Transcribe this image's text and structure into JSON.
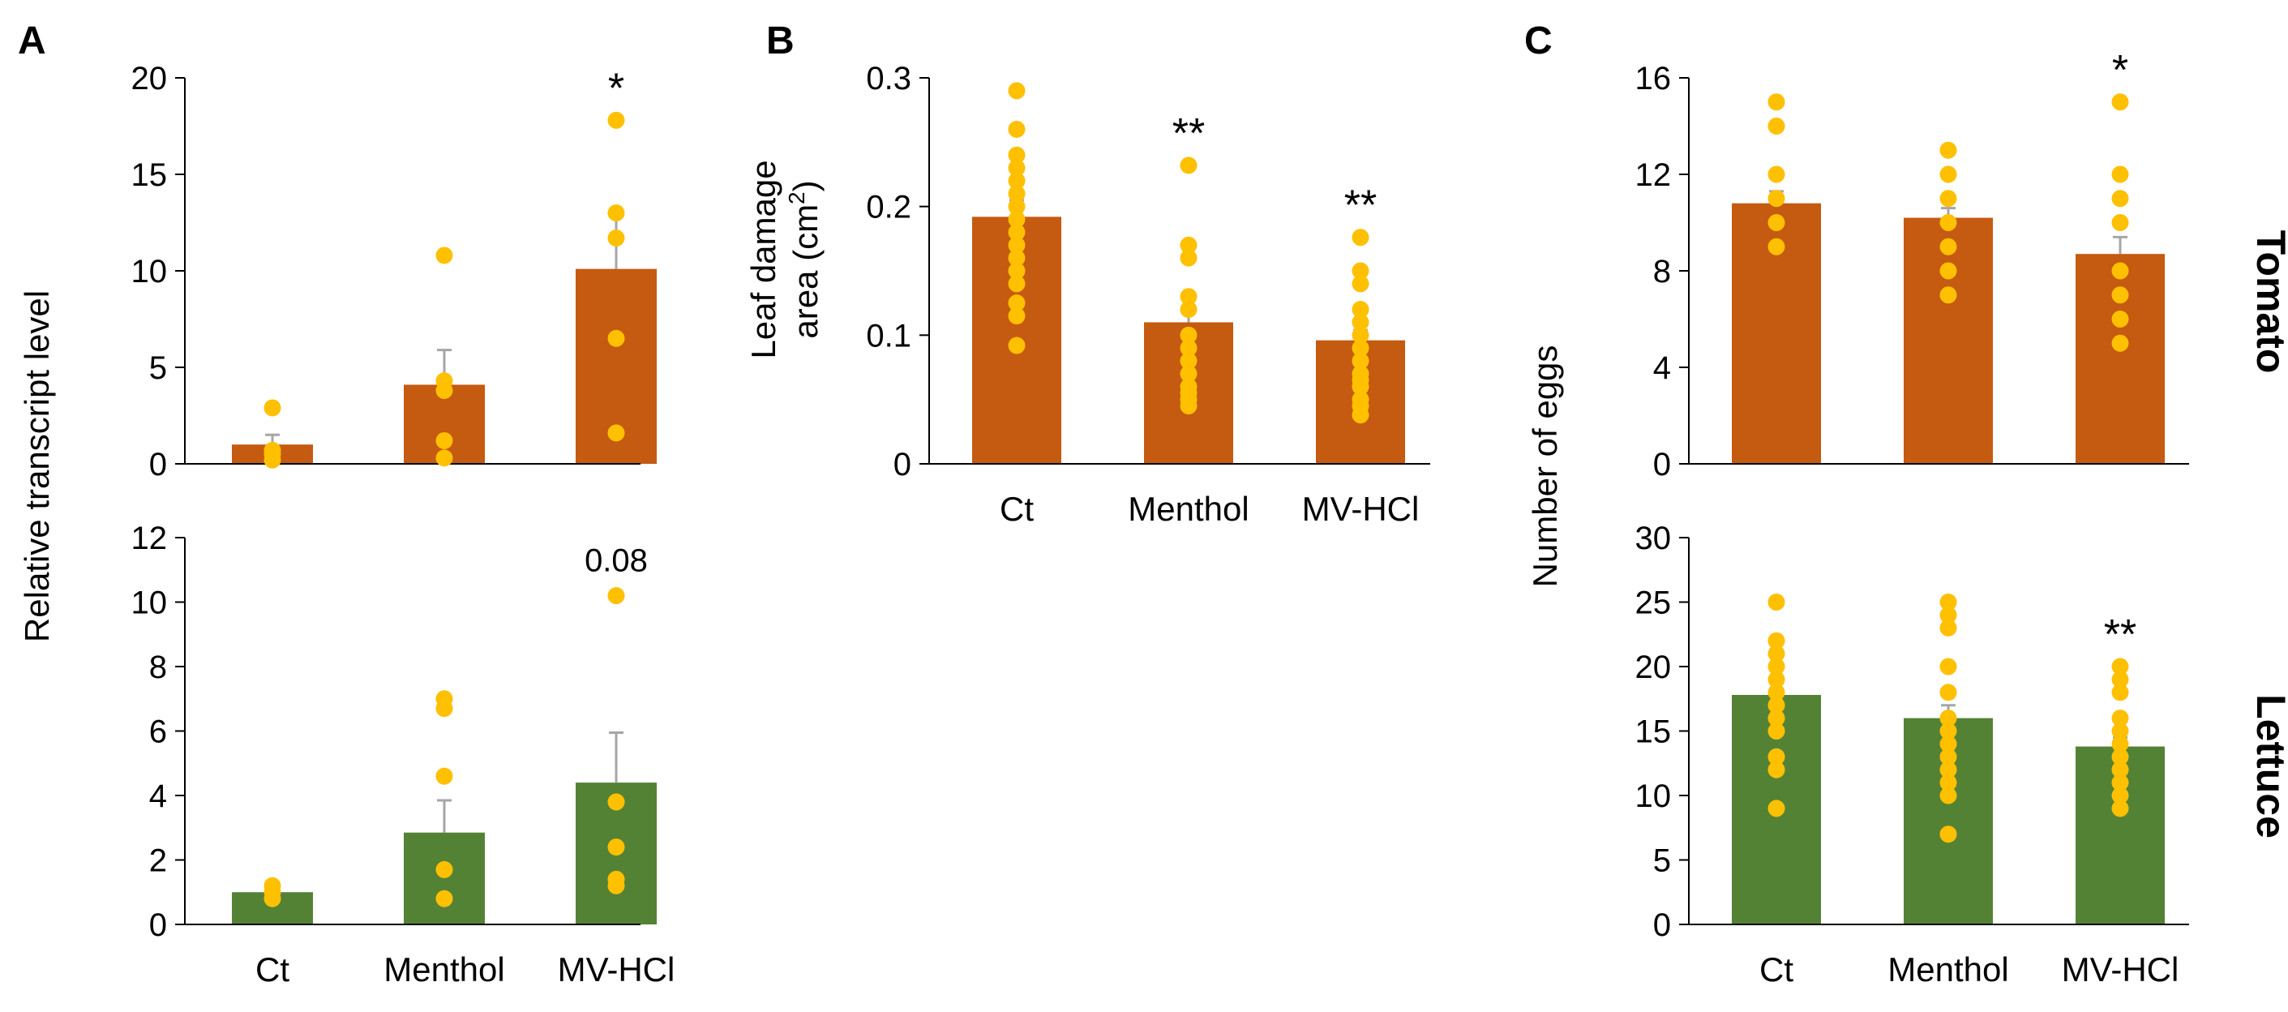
{
  "figure": {
    "panels": [
      "A",
      "B",
      "C"
    ],
    "row_labels": {
      "tomato": "Tomato",
      "lettuce": "Lettuce"
    },
    "colors": {
      "tomato": "#C55A11",
      "lettuce": "#548235",
      "points": "#FFC000",
      "error": "#A6A6A6",
      "axis": "#000000"
    }
  },
  "chart_data": [
    {
      "id": "A_top",
      "panel": "A",
      "type": "bar",
      "plant": "tomato",
      "categories": [
        "Ct",
        "Menthol",
        "MV-HCl"
      ],
      "values": [
        1.0,
        4.1,
        10.1
      ],
      "errors": [
        0.5,
        1.8,
        2.8
      ],
      "points": [
        [
          0.2,
          0.5,
          0.7,
          2.9
        ],
        [
          0.3,
          1.2,
          3.8,
          4.3,
          10.8
        ],
        [
          1.6,
          6.5,
          11.7,
          13.0,
          17.8
        ]
      ],
      "significance": [
        "",
        "",
        "*"
      ],
      "ylim": [
        0,
        20
      ],
      "yticks": [
        0,
        5,
        10,
        15,
        20
      ],
      "ylabel": "Relative transcript level",
      "xlabel": "",
      "show_category_labels": false
    },
    {
      "id": "A_bottom",
      "panel": "A",
      "type": "bar",
      "plant": "lettuce",
      "categories": [
        "Ct",
        "Menthol",
        "MV-HCl"
      ],
      "values": [
        1.0,
        2.85,
        4.4
      ],
      "errors": [
        0.15,
        1.0,
        1.55
      ],
      "points": [
        [
          0.8,
          1.0,
          1.2
        ],
        [
          0.8,
          1.7,
          4.6,
          6.7,
          7.0
        ],
        [
          1.2,
          1.4,
          2.4,
          3.8,
          10.2
        ]
      ],
      "significance": [
        "",
        "",
        "0.08"
      ],
      "ylim": [
        0,
        12
      ],
      "yticks": [
        0,
        2,
        4,
        6,
        8,
        10,
        12
      ],
      "xlabel": "",
      "show_category_labels": true
    },
    {
      "id": "B",
      "panel": "B",
      "type": "bar",
      "plant": "tomato",
      "categories": [
        "Ct",
        "Menthol",
        "MV-HCl"
      ],
      "values": [
        0.192,
        0.11,
        0.096
      ],
      "errors": [
        0.013,
        0.01,
        0.008
      ],
      "points": [
        [
          0.092,
          0.115,
          0.125,
          0.14,
          0.15,
          0.16,
          0.17,
          0.18,
          0.19,
          0.2,
          0.21,
          0.22,
          0.23,
          0.24,
          0.26,
          0.29
        ],
        [
          0.045,
          0.05,
          0.055,
          0.06,
          0.07,
          0.08,
          0.09,
          0.1,
          0.12,
          0.13,
          0.16,
          0.17,
          0.232
        ],
        [
          0.038,
          0.045,
          0.05,
          0.06,
          0.065,
          0.07,
          0.08,
          0.09,
          0.1,
          0.11,
          0.12,
          0.14,
          0.15,
          0.176
        ]
      ],
      "significance": [
        "",
        "**",
        "**"
      ],
      "ylim": [
        0,
        0.3
      ],
      "yticks": [
        0,
        0.1,
        0.2,
        0.3
      ],
      "ylabel_line1": "Leaf damage",
      "ylabel_line2": "area (cm",
      "ylabel_sup": "2",
      "ylabel_close": ")",
      "xlabel": "",
      "show_category_labels": true
    },
    {
      "id": "C_top",
      "panel": "C",
      "type": "bar",
      "plant": "tomato",
      "categories": [
        "Ct",
        "Menthol",
        "MV-HCl"
      ],
      "values": [
        10.8,
        10.2,
        8.7
      ],
      "errors": [
        0.5,
        0.4,
        0.7
      ],
      "points": [
        [
          9,
          10,
          11,
          12,
          14,
          15
        ],
        [
          7,
          8,
          9,
          10,
          11,
          12,
          13
        ],
        [
          5,
          6,
          7,
          8,
          10,
          11,
          12,
          15
        ]
      ],
      "significance": [
        "",
        "",
        "*"
      ],
      "ylim": [
        0,
        16
      ],
      "yticks": [
        0,
        4,
        8,
        12,
        16
      ],
      "ylabel": "Number of eggs",
      "xlabel": "",
      "show_category_labels": false
    },
    {
      "id": "C_bottom",
      "panel": "C",
      "type": "bar",
      "plant": "lettuce",
      "categories": [
        "Ct",
        "Menthol",
        "MV-HCl"
      ],
      "values": [
        17.8,
        16.0,
        13.8
      ],
      "errors": [
        0.9,
        1.0,
        0.7
      ],
      "points": [
        [
          9,
          12,
          13,
          15,
          16,
          17,
          18,
          19,
          20,
          21,
          22,
          25
        ],
        [
          7,
          10,
          11,
          12,
          13,
          14,
          15,
          16,
          18,
          20,
          23,
          24,
          25
        ],
        [
          9,
          10,
          11,
          12,
          13,
          14,
          15,
          16,
          18,
          19,
          20
        ]
      ],
      "significance": [
        "",
        "",
        "**"
      ],
      "ylim": [
        0,
        30
      ],
      "yticks": [
        0,
        5,
        10,
        15,
        20,
        25,
        30
      ],
      "xlabel": "",
      "show_category_labels": true
    }
  ]
}
